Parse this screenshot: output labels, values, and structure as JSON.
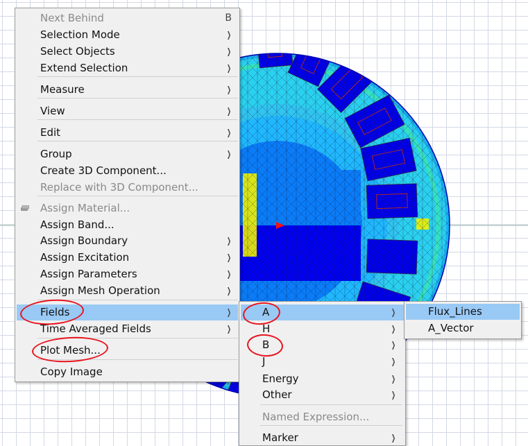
{
  "main_menu": {
    "items": [
      {
        "label": "Next Behind",
        "shortcut": "B",
        "disabled": true
      },
      {
        "label": "Selection Mode",
        "submenu": true
      },
      {
        "label": "Select Objects",
        "submenu": true
      },
      {
        "label": "Extend Selection",
        "submenu": true
      },
      {
        "label": "Measure",
        "submenu": true
      },
      {
        "label": "View",
        "submenu": true
      },
      {
        "label": "Edit",
        "submenu": true
      },
      {
        "label": "Group",
        "submenu": true
      },
      {
        "label": "Create 3D Component..."
      },
      {
        "label": "Replace with 3D Component...",
        "disabled": true
      },
      {
        "label": "Assign Material...",
        "disabled": true,
        "icon": "material-icon"
      },
      {
        "label": "Assign Band..."
      },
      {
        "label": "Assign Boundary",
        "submenu": true
      },
      {
        "label": "Assign Excitation",
        "submenu": true
      },
      {
        "label": "Assign Parameters",
        "submenu": true
      },
      {
        "label": "Assign Mesh Operation",
        "submenu": true
      },
      {
        "label": "Fields",
        "submenu": true,
        "highlighted": true
      },
      {
        "label": "Time Averaged Fields",
        "submenu": true
      },
      {
        "label": "Plot Mesh..."
      },
      {
        "label": "Copy Image"
      }
    ]
  },
  "fields_submenu": {
    "items": [
      {
        "label": "A",
        "submenu": true,
        "highlighted": true
      },
      {
        "label": "H",
        "submenu": true
      },
      {
        "label": "B",
        "submenu": true
      },
      {
        "label": "J",
        "submenu": true
      },
      {
        "label": "Energy",
        "submenu": true
      },
      {
        "label": "Other",
        "submenu": true
      },
      {
        "label": "Named Expression...",
        "disabled": true
      },
      {
        "label": "Marker",
        "submenu": true
      }
    ]
  },
  "a_submenu": {
    "items": [
      {
        "label": "Flux_Lines",
        "highlighted": true
      },
      {
        "label": "A_Vector"
      }
    ]
  },
  "colors": {
    "menu_bg": "#f0f0f0",
    "highlight": "#99c9f5",
    "disabled_text": "#8a8a8a",
    "annotation_red": "#e8141e",
    "plot_blue": "#0000f0",
    "plot_cyan": "#00e0ff",
    "plot_green": "#40e060",
    "plot_yellow": "#f0f000"
  }
}
